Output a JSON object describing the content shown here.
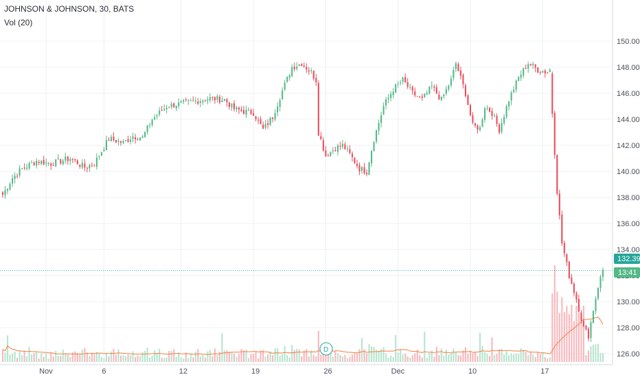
{
  "header": {
    "title": "JOHNSON & JOHNSON, 30, BATS",
    "volume_label": "Vol (20)"
  },
  "colors": {
    "up": "#53b987",
    "down": "#eb4d5c",
    "volume_up": "#b7e4cf",
    "volume_down": "#f7b8bd",
    "ma": "#f57f3f",
    "last_price": "#26a69a",
    "countdown": "#53b987",
    "grid": "#eef0f3"
  },
  "price_tag": {
    "price": "132.39",
    "countdown": "13:41"
  },
  "event_marker": {
    "label": "D",
    "date": "Nov 26"
  },
  "chart_data": {
    "type": "candlestick",
    "interval": "30",
    "y_ticks": [
      "126.00",
      "128.00",
      "130.00",
      "132.00",
      "134.00",
      "136.00",
      "138.00",
      "140.00",
      "142.00",
      "144.00",
      "146.00",
      "148.00",
      "150.00"
    ],
    "ylim": [
      125.6,
      150.2
    ],
    "x_ticks": [
      "Nov",
      "6",
      "12",
      "19",
      "26",
      "Dec",
      "10",
      "17"
    ],
    "last_price": 132.39,
    "volume_ma_period": 20,
    "close_anchors": [
      [
        0,
        138.2
      ],
      [
        4,
        139.5
      ],
      [
        8,
        140.2
      ],
      [
        14,
        140.8
      ],
      [
        20,
        140.6
      ],
      [
        28,
        141.0
      ],
      [
        34,
        140.3
      ],
      [
        38,
        140.6
      ],
      [
        44,
        142.5
      ],
      [
        50,
        142.2
      ],
      [
        54,
        142.7
      ],
      [
        58,
        142.6
      ],
      [
        62,
        144.0
      ],
      [
        68,
        145.0
      ],
      [
        74,
        145.2
      ],
      [
        80,
        145.4
      ],
      [
        86,
        145.6
      ],
      [
        92,
        145.5
      ],
      [
        96,
        144.8
      ],
      [
        100,
        144.6
      ],
      [
        104,
        144.5
      ],
      [
        108,
        143.2
      ],
      [
        112,
        144.2
      ],
      [
        116,
        146.2
      ],
      [
        120,
        148.0
      ],
      [
        124,
        148.3
      ],
      [
        128,
        147.6
      ],
      [
        130,
        147.0
      ],
      [
        131,
        143.0
      ],
      [
        134,
        141.2
      ],
      [
        138,
        141.8
      ],
      [
        141,
        142.0
      ],
      [
        144,
        141.3
      ],
      [
        148,
        140.2
      ],
      [
        151,
        140.0
      ],
      [
        154,
        142.5
      ],
      [
        158,
        145.0
      ],
      [
        162,
        146.3
      ],
      [
        166,
        147.0
      ],
      [
        170,
        146.0
      ],
      [
        174,
        145.5
      ],
      [
        178,
        146.5
      ],
      [
        182,
        145.5
      ],
      [
        186,
        147.0
      ],
      [
        188,
        148.3
      ],
      [
        192,
        146.0
      ],
      [
        195,
        143.5
      ],
      [
        198,
        143.3
      ],
      [
        200,
        145.0
      ],
      [
        203,
        144.5
      ],
      [
        206,
        143.2
      ],
      [
        210,
        145.5
      ],
      [
        214,
        147.2
      ],
      [
        218,
        148.3
      ],
      [
        222,
        147.8
      ],
      [
        226,
        147.6
      ],
      [
        227,
        147.8
      ],
      [
        228,
        144.5
      ],
      [
        230,
        138.5
      ],
      [
        232,
        134.5
      ],
      [
        235,
        132.0
      ],
      [
        238,
        130.2
      ],
      [
        241,
        128.0
      ],
      [
        243,
        127.4
      ],
      [
        245,
        129.4
      ],
      [
        247,
        131.2
      ],
      [
        249,
        132.39
      ]
    ],
    "gap_before_index": 228
  }
}
